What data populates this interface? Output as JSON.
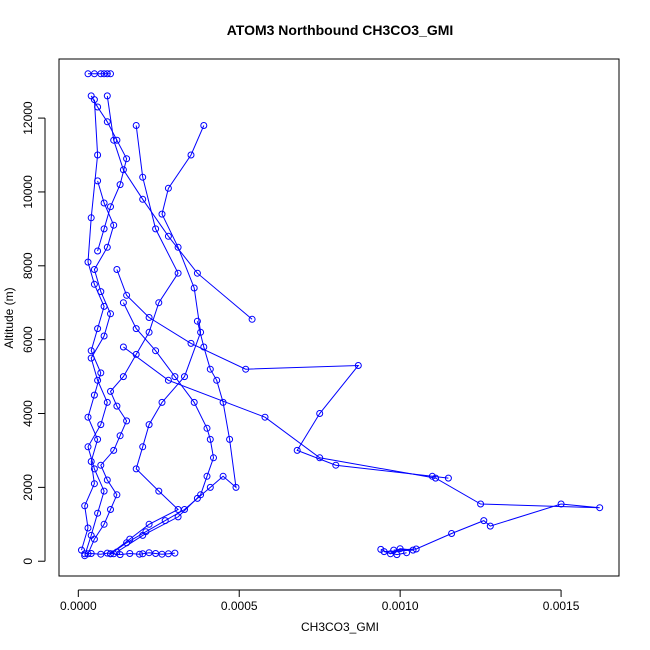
{
  "chart_data": {
    "type": "line",
    "title": "ATOM3 Northbound CH3CO3_GMI",
    "xlabel": "CH3CO3_GMI",
    "ylabel": "Altitude (m)",
    "xlim": [
      -6e-05,
      0.00168
    ],
    "ylim": [
      -400,
      13600
    ],
    "xticks": [
      0.0,
      0.0005,
      0.001,
      0.0015
    ],
    "xtick_labels": [
      "0.0000",
      "0.0005",
      "0.0010",
      "0.0015"
    ],
    "yticks": [
      0,
      2000,
      4000,
      6000,
      8000,
      10000,
      12000
    ],
    "ytick_labels": [
      "0",
      "2000",
      "4000",
      "6000",
      "8000",
      "10000",
      "12000"
    ],
    "grid": false,
    "legend": "none",
    "marker": "open-circle",
    "color": "#0000ff",
    "series": [
      {
        "x": [
          3e-05,
          5e-05,
          8e-05,
          0.0001,
          0.00012,
          9e-05,
          7e-05,
          0.00011,
          0.00013,
          0.00015,
          0.00012,
          0.0001,
          0.00014,
          0.00018,
          0.00022,
          0.00025,
          0.00031,
          0.00024,
          0.0002,
          0.00018
        ],
        "y": [
          200,
          600,
          1000,
          1400,
          1800,
          2200,
          2600,
          3000,
          3400,
          3800,
          4200,
          4600,
          5000,
          5600,
          6200,
          7000,
          7800,
          9000,
          10400,
          11800
        ]
      },
      {
        "x": [
          2e-05,
          4e-05,
          6e-05,
          8e-05,
          5e-05,
          3e-05,
          7e-05,
          9e-05,
          6e-05,
          4e-05,
          8e-05,
          0.0001,
          7e-05,
          5e-05,
          9e-05,
          0.00011,
          8e-05,
          6e-05
        ],
        "y": [
          150,
          700,
          1300,
          1900,
          2500,
          3100,
          3700,
          4300,
          4900,
          5500,
          6100,
          6700,
          7300,
          7900,
          8500,
          9100,
          9700,
          10300
        ]
      },
      {
        "x": [
          1e-05,
          3e-05,
          2e-05,
          5e-05,
          4e-05,
          6e-05,
          3e-05,
          5e-05,
          7e-05,
          4e-05,
          6e-05,
          8e-05,
          5e-05,
          3e-05,
          4e-05,
          6e-05,
          5e-05
        ],
        "y": [
          300,
          900,
          1500,
          2100,
          2700,
          3300,
          3900,
          4500,
          5100,
          5700,
          6300,
          6900,
          7500,
          8100,
          9300,
          11000,
          12500
        ]
      },
      {
        "x": [
          0.0001,
          0.00016,
          0.00022,
          0.00031,
          0.00025,
          0.00018,
          0.0002,
          0.00022,
          0.00026,
          0.00033,
          0.00038,
          0.00036,
          0.00031,
          0.00026,
          0.00028,
          0.00035,
          0.00039
        ],
        "y": [
          200,
          600,
          1000,
          1400,
          1900,
          2500,
          3100,
          3700,
          4300,
          5000,
          6200,
          7400,
          8500,
          9400,
          10100,
          11000,
          11800
        ]
      },
      {
        "x": [
          0.0001,
          0.00015,
          0.00021,
          0.00027,
          0.00033,
          0.00037,
          0.00041,
          0.00045,
          0.00049,
          0.00047,
          0.00045,
          0.00043,
          0.00041,
          0.00039,
          0.00037
        ],
        "y": [
          200,
          500,
          800,
          1100,
          1400,
          1700,
          2000,
          2300,
          2000,
          3300,
          4300,
          4900,
          5200,
          5800,
          6500
        ]
      },
      {
        "x": [
          0.00012,
          0.0002,
          0.00031,
          0.00038,
          0.0004,
          0.00042,
          0.00041,
          0.0004,
          0.00036,
          0.0003,
          0.00024,
          0.00018,
          0.00014
        ],
        "y": [
          250,
          700,
          1200,
          1800,
          2300,
          2800,
          3300,
          3600,
          4300,
          5000,
          5700,
          6300,
          7000
        ]
      },
      {
        "x": [
          0.0011,
          0.00115,
          0.0008,
          0.00068,
          0.00075,
          0.00087,
          0.00052,
          0.00035,
          0.00022,
          0.00015,
          0.00012
        ],
        "y": [
          2300,
          2250,
          2600,
          3000,
          4000,
          5300,
          5200,
          5900,
          6600,
          7200,
          7900
        ]
      },
      {
        "x": [
          0.00098,
          0.00105,
          0.00116,
          0.00126,
          0.00128,
          0.0015,
          0.00162,
          0.00125,
          0.00111,
          0.00075,
          0.00058,
          0.00028,
          0.00014
        ],
        "y": [
          300,
          330,
          750,
          1100,
          950,
          1550,
          1450,
          1550,
          2250,
          2800,
          3900,
          4900,
          5800
        ]
      },
      {
        "x": [
          0.00094,
          0.00097,
          0.001,
          0.00104,
          0.00095,
          0.00099,
          0.00102
        ],
        "y": [
          320,
          200,
          340,
          300,
          260,
          180,
          230
        ]
      },
      {
        "x": [
          0.00054,
          0.00037,
          0.00028,
          0.0002,
          0.00014,
          0.00011,
          9e-05
        ],
        "y": [
          6550,
          7800,
          8800,
          9800,
          10600,
          11400,
          12600
        ]
      },
      {
        "x": [
          4e-05,
          6e-05,
          9e-05,
          0.00012,
          0.00015,
          0.00013,
          0.0001,
          8e-05,
          6e-05
        ],
        "y": [
          12600,
          12300,
          11900,
          11400,
          10900,
          10200,
          9600,
          9000,
          8400
        ]
      },
      {
        "x": [
          2e-05,
          4e-05,
          7e-05,
          9e-05,
          0.00011,
          0.00013,
          0.00016,
          0.00019,
          0.0002,
          0.00022,
          0.00024,
          0.00026,
          0.00028,
          0.0003
        ],
        "y": [
          200,
          210,
          190,
          220,
          200,
          180,
          210,
          190,
          200,
          230,
          210,
          190,
          200,
          220
        ]
      },
      {
        "x": [
          3e-05,
          5e-05,
          7e-05,
          8e-05,
          9e-05,
          0.0001
        ],
        "y": [
          13200,
          13200,
          13200,
          13200,
          13200,
          13200
        ]
      }
    ]
  }
}
